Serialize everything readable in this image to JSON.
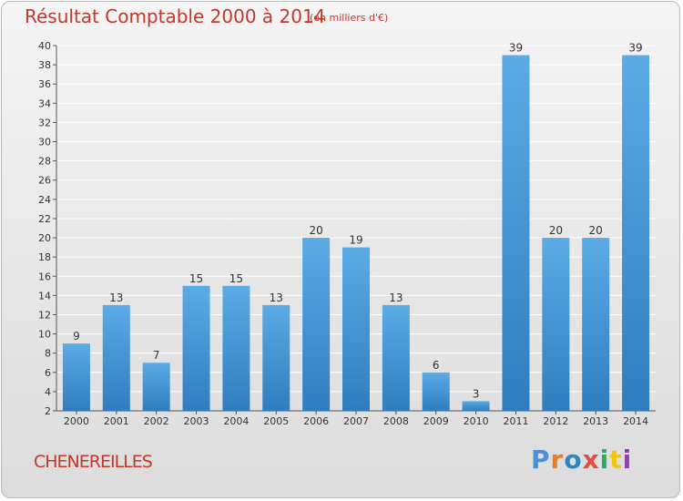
{
  "page": {
    "title": "Résultat Comptable 2000 à 2014",
    "subtitle": "(en milliers d'€)",
    "commune": "CHENEREILLES",
    "logo": {
      "text": "Proxiti",
      "letter_colors": [
        "#4a90d9",
        "#e67e22",
        "#2e86c1",
        "#e74c3c",
        "#27ae60",
        "#f1c40f",
        "#8e44ad"
      ]
    }
  },
  "colors": {
    "title": "#c0392b",
    "bar_top": "#5aabe6",
    "bar_bottom": "#2f7dbf",
    "grid": "#ffffff",
    "axis": "#555555",
    "text": "#333333"
  },
  "chart_data": {
    "type": "bar",
    "title": "Résultat Comptable 2000 à 2014",
    "subtitle": "(en milliers d'€)",
    "categories": [
      "2000",
      "2001",
      "2002",
      "2003",
      "2004",
      "2005",
      "2006",
      "2007",
      "2008",
      "2009",
      "2010",
      "2011",
      "2012",
      "2013",
      "2014"
    ],
    "values": [
      9,
      13,
      7,
      15,
      15,
      13,
      20,
      19,
      13,
      6,
      3,
      39,
      20,
      20,
      39
    ],
    "data_labels": [
      "9",
      "13",
      "7",
      "15",
      "15",
      "13",
      "20",
      "19",
      "13",
      "6",
      "3",
      "39",
      "20",
      "20",
      "39"
    ],
    "ylim": [
      2,
      40
    ],
    "yticks": [
      "2",
      "4",
      "6",
      "8",
      "10",
      "12",
      "14",
      "16",
      "18",
      "20",
      "22",
      "24",
      "26",
      "28",
      "30",
      "32",
      "34",
      "36",
      "38",
      "40"
    ],
    "grid": true,
    "legend": "none",
    "xlabel": "",
    "ylabel": ""
  }
}
